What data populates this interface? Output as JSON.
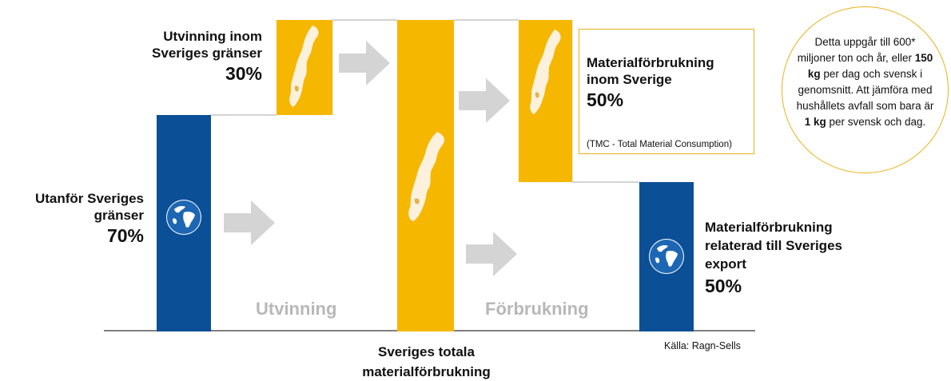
{
  "left": {
    "title_line1": "Utanför Sveriges",
    "title_line2": "gränser",
    "percent": "70%"
  },
  "top_left": {
    "title_line1": "Utvinning inom",
    "title_line2": "Sveriges gränser",
    "percent": "30%"
  },
  "middle": {
    "label_line1": "Sveriges totala",
    "label_line2": "materialförbrukning"
  },
  "stage_labels": {
    "extraction": "Utvinning",
    "consumption": "Förbrukning"
  },
  "domestic": {
    "title_line1": "Materialförbrukning",
    "title_line2": "inom Sverige",
    "percent": "50%",
    "note": "(TMC - Total Material Consumption)"
  },
  "export": {
    "title_line1": "Materialförbrukning",
    "title_line2": "relaterad till Sveriges",
    "title_line3": "export",
    "percent": "50%"
  },
  "callout": {
    "line1": "Detta uppgår till 600*",
    "line2_pre": "miljoner ton och år, eller ",
    "line2_bold": "150",
    "line3_bold": "kg",
    "line3_post": " per dag och svensk i",
    "line4": "genomsnitt. Att jämföra med",
    "line5": "hushållets avfall som bara är",
    "line6_bold": "1 kg",
    "line6_post": " per svensk och dag."
  },
  "source": "Källa: Ragn-Sells",
  "colors": {
    "blue": "#0b4f96",
    "yellow": "#f6b700",
    "arrow": "#d4d4d4",
    "callout_border": "#e8b21b"
  },
  "icons": [
    "globe-icon",
    "sweden-map-icon",
    "arrow-right-icon"
  ]
}
